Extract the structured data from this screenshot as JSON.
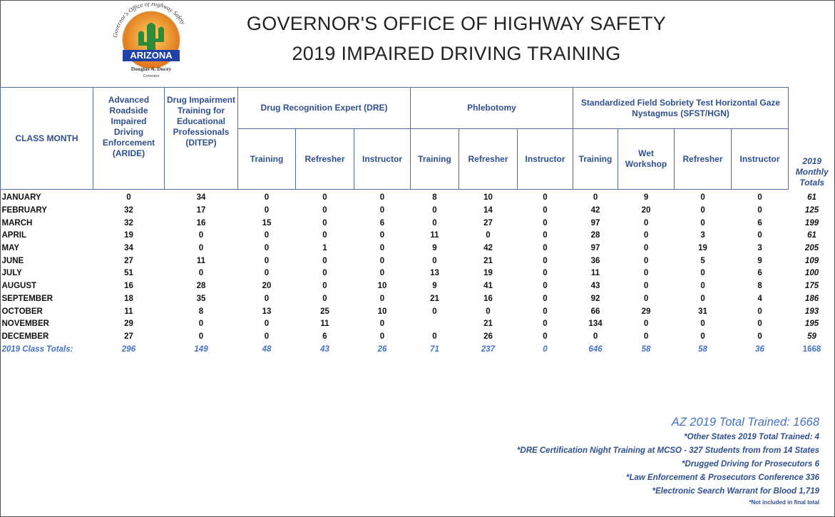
{
  "header": {
    "title": "GOVERNOR'S OFFICE OF HIGHWAY SAFETY",
    "subtitle": "2019 IMPAIRED DRIVING TRAINING",
    "logo": {
      "arc_text": "Governor's Office of Highway Safety",
      "state": "ARIZONA",
      "name": "Douglas A. Ducey",
      "role": "Governor"
    }
  },
  "table": {
    "row_header": "CLASS MONTH",
    "groups": [
      {
        "label": "Advanced Roadside Impaired Driving Enforcement (ARIDE)"
      },
      {
        "label": "Drug Impairment Training for Educational Professionals (DITEP)"
      },
      {
        "label": "Drug Recognition Expert (DRE)",
        "columns": [
          "Training",
          "Refresher",
          "Instructor"
        ]
      },
      {
        "label": "Phlebotomy",
        "columns": [
          "Training",
          "Refresher",
          "Instructor"
        ]
      },
      {
        "label": "Standardized Field Sobriety Test Horizontal Gaze Nystagmus (SFST/HGN)",
        "columns": [
          "Training",
          "Wet Workshop",
          "Refresher",
          "Instructor"
        ]
      }
    ],
    "total_header": "2019 Monthly Totals",
    "rows": [
      {
        "month": "JANUARY",
        "values": [
          0,
          34,
          0,
          0,
          0,
          8,
          10,
          0,
          0,
          9,
          0,
          0
        ],
        "total": 61
      },
      {
        "month": "FEBRUARY",
        "values": [
          32,
          17,
          0,
          0,
          0,
          0,
          14,
          0,
          42,
          20,
          0,
          0
        ],
        "total": 125
      },
      {
        "month": "MARCH",
        "values": [
          32,
          16,
          15,
          0,
          6,
          0,
          27,
          0,
          97,
          0,
          0,
          6
        ],
        "total": 199
      },
      {
        "month": "APRIL",
        "values": [
          19,
          0,
          0,
          0,
          0,
          11,
          0,
          0,
          28,
          0,
          3,
          0
        ],
        "total": 61
      },
      {
        "month": "MAY",
        "values": [
          34,
          0,
          0,
          1,
          0,
          9,
          42,
          0,
          97,
          0,
          19,
          3
        ],
        "total": 205
      },
      {
        "month": "JUNE",
        "values": [
          27,
          11,
          0,
          0,
          0,
          0,
          21,
          0,
          36,
          0,
          5,
          9
        ],
        "total": 109
      },
      {
        "month": "JULY",
        "values": [
          51,
          0,
          0,
          0,
          0,
          13,
          19,
          0,
          11,
          0,
          0,
          6
        ],
        "total": 100
      },
      {
        "month": "AUGUST",
        "values": [
          16,
          28,
          20,
          0,
          10,
          9,
          41,
          0,
          43,
          0,
          0,
          8
        ],
        "total": 175
      },
      {
        "month": "SEPTEMBER",
        "values": [
          18,
          35,
          0,
          0,
          0,
          21,
          16,
          0,
          92,
          0,
          0,
          4
        ],
        "total": 186
      },
      {
        "month": "OCTOBER",
        "values": [
          11,
          8,
          13,
          25,
          10,
          0,
          0,
          0,
          66,
          29,
          31,
          0
        ],
        "total": 193
      },
      {
        "month": "NOVEMBER",
        "values": [
          29,
          0,
          0,
          11,
          0,
          null,
          21,
          0,
          134,
          0,
          0,
          0
        ],
        "total": 195
      },
      {
        "month": "DECEMBER",
        "values": [
          27,
          0,
          0,
          6,
          0,
          0,
          26,
          0,
          0,
          0,
          0,
          0
        ],
        "total": 59
      }
    ],
    "totals": {
      "label": "2019 Class Totals:",
      "values": [
        296,
        149,
        48,
        43,
        26,
        71,
        237,
        0,
        646,
        58,
        58,
        36
      ],
      "total": 1668
    }
  },
  "notes": {
    "headline": "AZ 2019 Total Trained:  1668",
    "lines": [
      "*Other States 2019 Total Trained:  4",
      "*DRE Certification Night Training at MCSO - 327 Students from from 14 States",
      "*Drugged Driving for Prosecutors  6",
      "*Law Enforcement & Prosecutors Conference 336",
      "*Electronic Search Warrant for Blood 1,719"
    ],
    "footnote": "*Not included in final total"
  }
}
